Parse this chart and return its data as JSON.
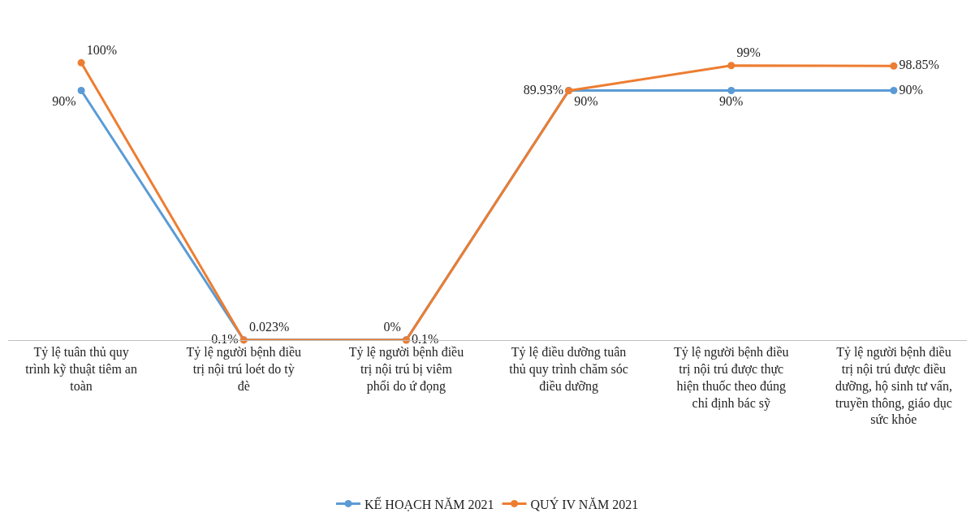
{
  "chart_data": {
    "type": "line",
    "marker": "circle",
    "legend": "bottom",
    "categories": [
      "Tỷ lệ tuân thủ quy trình kỹ thuật tiêm an toàn",
      "Tỷ lệ người bệnh điều trị nội trú loét do tỳ đè",
      "Tỷ lệ người bệnh điều trị nội trú bị viêm phổi do ứ đọng",
      "Tỷ lệ điều dưỡng tuân thủ quy trình chăm sóc điều dưỡng",
      "Tỷ lệ người bệnh điều trị nội trú được thực hiện thuốc theo đúng chỉ định bác sỹ",
      "Tỷ lệ người bệnh điều trị nội trú được điều dưỡng, hộ sinh tư vấn, truyền thông, giáo dục sức khỏe"
    ],
    "series": [
      {
        "name": "KẾ HOẠCH NĂM 2021",
        "color": "#5b9bd5",
        "values": [
          90,
          0.1,
          0.1,
          90,
          90,
          90
        ],
        "value_labels": [
          "90%",
          "0.1%",
          "0.1%",
          "90%",
          "90%",
          "90%"
        ]
      },
      {
        "name": "QUÝ IV NĂM 2021",
        "color": "#ed7d31",
        "values": [
          100,
          0.023,
          0,
          89.93,
          99,
          98.85
        ],
        "value_labels": [
          "100%",
          "0.023%",
          "0%",
          "89.93%",
          "99%",
          "98.85%"
        ]
      }
    ]
  }
}
